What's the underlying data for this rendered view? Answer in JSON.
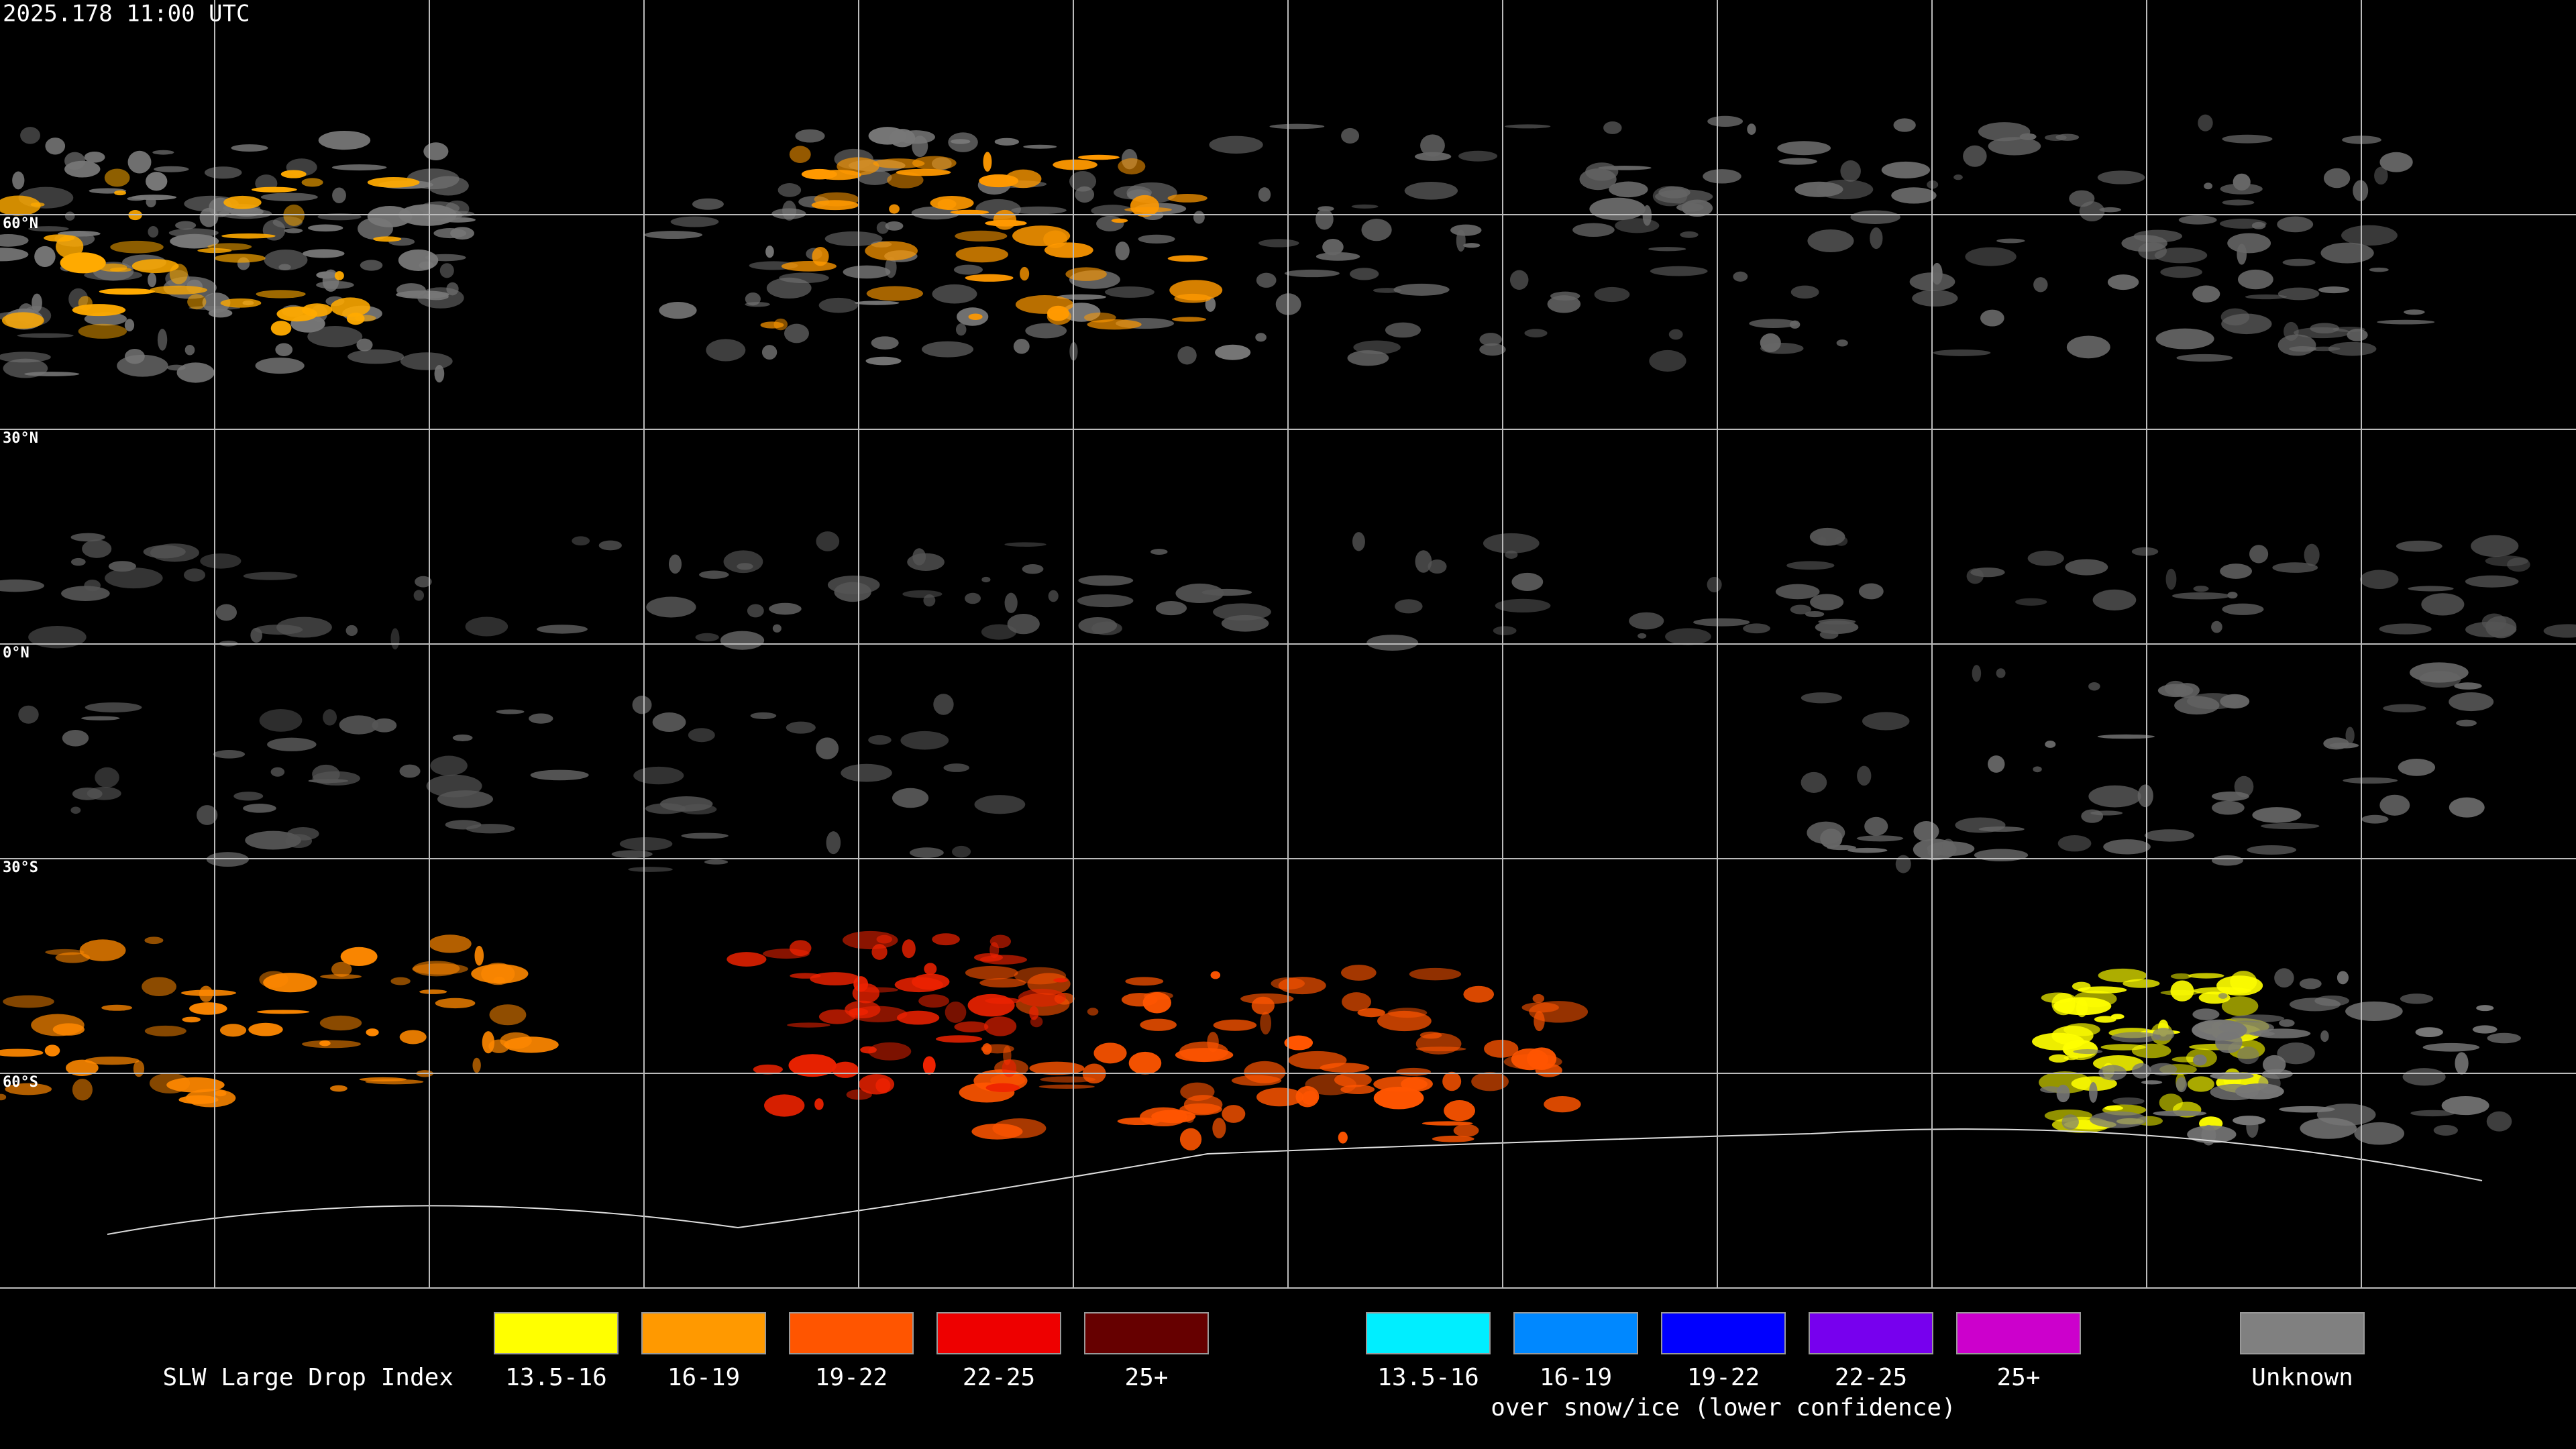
{
  "header": {
    "title": "2025.178 11:00 UTC"
  },
  "map": {
    "latitude_labels": [
      "60°N",
      "30°N",
      "0°N",
      "30°S",
      "60°S"
    ]
  },
  "legend": {
    "title": "SLW Large Drop Index",
    "groups": [
      {
        "items": [
          {
            "label": "13.5-16",
            "color": "#ffff00"
          },
          {
            "label": "16-19",
            "color": "#ff9900"
          },
          {
            "label": "19-22",
            "color": "#ff5500"
          },
          {
            "label": "22-25",
            "color": "#ee0000"
          },
          {
            "label": "25+",
            "color": "#660000"
          }
        ]
      },
      {
        "items": [
          {
            "label": "13.5-16",
            "color": "#00eeff"
          },
          {
            "label": "16-19",
            "color": "#0088ff"
          },
          {
            "label": "19-22",
            "color": "#0000ff"
          },
          {
            "label": "22-25",
            "color": "#7700ee"
          },
          {
            "label": "25+",
            "color": "#cc00cc"
          }
        ],
        "caption": "over snow/ice (lower confidence)"
      },
      {
        "items": [
          {
            "label": "Unknown",
            "color": "#808080"
          }
        ]
      }
    ]
  }
}
